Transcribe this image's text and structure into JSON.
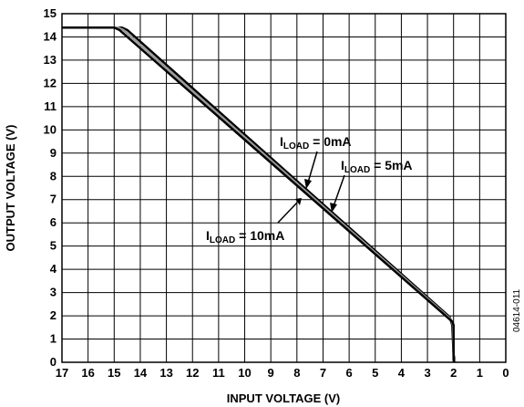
{
  "chart_data": {
    "type": "line",
    "xlabel": "INPUT VOLTAGE (V)",
    "ylabel": "OUTPUT VOLTAGE (V)",
    "xlim": [
      17,
      0
    ],
    "ylim": [
      0,
      15
    ],
    "x_reversed": true,
    "grid": true,
    "x_ticks": [
      "17",
      "16",
      "15",
      "14",
      "13",
      "12",
      "11",
      "10",
      "9",
      "8",
      "7",
      "6",
      "5",
      "4",
      "3",
      "2",
      "1",
      "0"
    ],
    "y_ticks": [
      "0",
      "1",
      "2",
      "3",
      "4",
      "5",
      "6",
      "7",
      "8",
      "9",
      "10",
      "11",
      "12",
      "13",
      "14",
      "15"
    ],
    "series": [
      {
        "name": "ILOAD = 0mA",
        "color": "#000000",
        "points": [
          [
            17,
            14.4
          ],
          [
            14.7,
            14.4
          ],
          [
            14.5,
            14.3
          ],
          [
            2.15,
            1.95
          ],
          [
            2.05,
            1.6
          ],
          [
            2.0,
            0.35
          ],
          [
            1.95,
            0.0
          ]
        ]
      },
      {
        "name": "ILOAD = 5mA",
        "color": "#9a9a9a",
        "points": [
          [
            17,
            14.4
          ],
          [
            14.85,
            14.4
          ],
          [
            14.65,
            14.3
          ],
          [
            2.1,
            1.85
          ],
          [
            2.02,
            1.6
          ],
          [
            2.0,
            0.2
          ],
          [
            1.95,
            0.0
          ]
        ]
      },
      {
        "name": "ILOAD = 10mA",
        "color": "#000000",
        "points": [
          [
            17,
            14.4
          ],
          [
            15.0,
            14.4
          ],
          [
            14.8,
            14.3
          ],
          [
            2.05,
            1.75
          ],
          [
            2.0,
            1.6
          ],
          [
            2.0,
            0.1
          ],
          [
            1.98,
            0.0
          ]
        ]
      }
    ],
    "annotations": [
      {
        "main": "I",
        "sub": "LOAD",
        "rest": " = 0mA"
      },
      {
        "main": "I",
        "sub": "LOAD",
        "rest": " = 5mA"
      },
      {
        "main": "I",
        "sub": "LOAD",
        "rest": " = 10mA"
      }
    ],
    "figure_id": "04614-011"
  }
}
